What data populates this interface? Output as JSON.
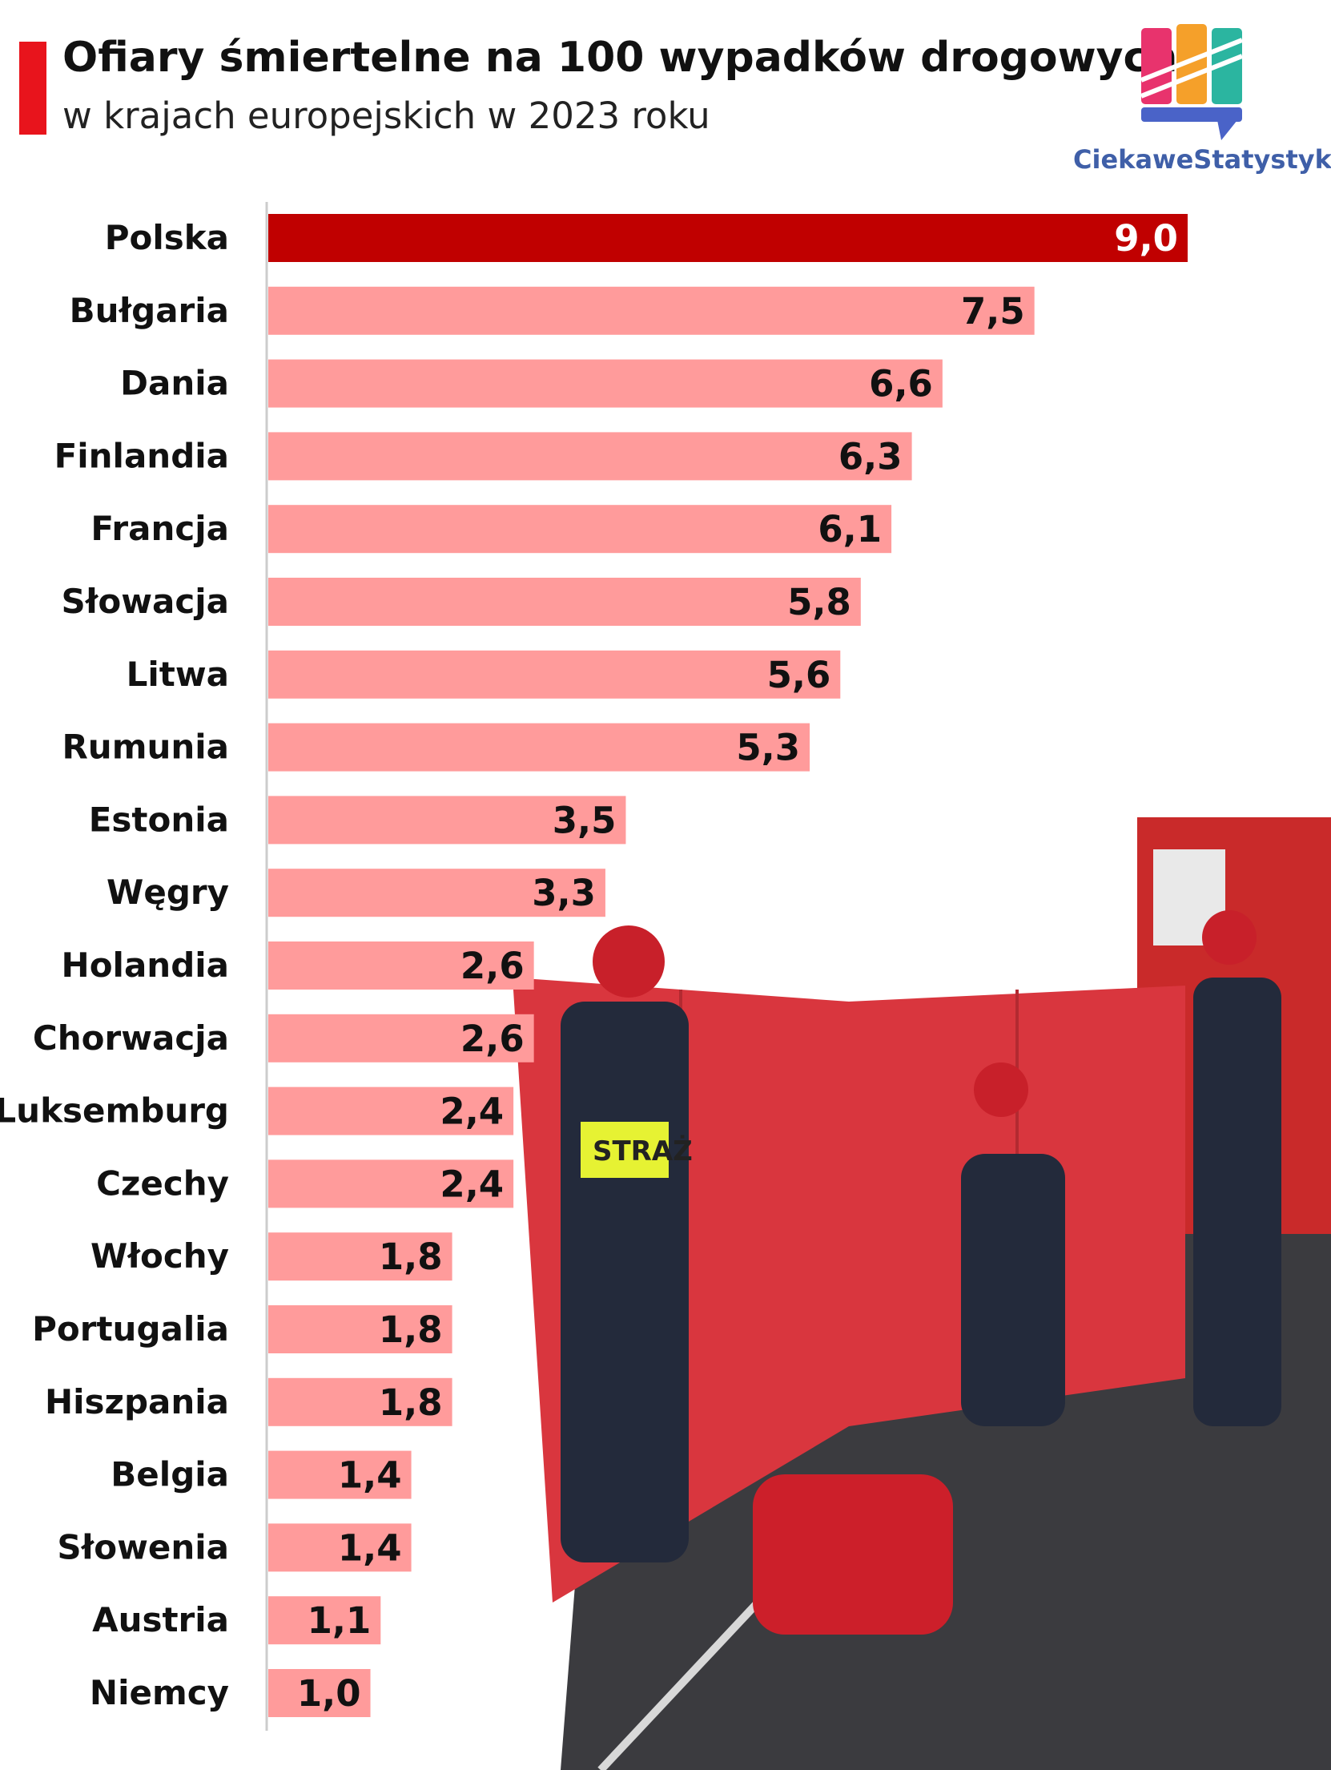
{
  "header": {
    "title": "Ofiary śmiertelne na 100 wypadków drogowych",
    "subtitle": "w krajach europejskich w 2023 roku"
  },
  "brand": {
    "name": "CiekaweStatystyki.pl",
    "logo_colors": [
      "#e8336d",
      "#f5a02a",
      "#2bb5a0",
      "#4a63c8"
    ]
  },
  "photo": {
    "icon": "firefighters-photo",
    "vest_text": "STRAŻ"
  },
  "colors": {
    "highlight_bar": "#c00000",
    "bar": "#ff9b9b",
    "highlight_value": "#ffffff",
    "value": "#111111",
    "axis": "#cccccc"
  },
  "chart_data": {
    "type": "bar",
    "orientation": "horizontal",
    "categories": [
      "Polska",
      "Bułgaria",
      "Dania",
      "Finlandia",
      "Francja",
      "Słowacja",
      "Litwa",
      "Rumunia",
      "Estonia",
      "Węgry",
      "Holandia",
      "Chorwacja",
      "Luksemburg",
      "Czechy",
      "Włochy",
      "Portugalia",
      "Hiszpania",
      "Belgia",
      "Słowenia",
      "Austria",
      "Niemcy"
    ],
    "values": [
      9.0,
      7.5,
      6.6,
      6.3,
      6.1,
      5.8,
      5.6,
      5.3,
      3.5,
      3.3,
      2.6,
      2.6,
      2.4,
      2.4,
      1.8,
      1.8,
      1.8,
      1.4,
      1.4,
      1.1,
      1.0
    ],
    "value_labels": [
      "9,0",
      "7,5",
      "6,6",
      "6,3",
      "6,1",
      "5,8",
      "5,6",
      "5,3",
      "3,5",
      "3,3",
      "2,6",
      "2,6",
      "2,4",
      "2,4",
      "1,8",
      "1,8",
      "1,8",
      "1,4",
      "1,4",
      "1,1",
      "1,0"
    ],
    "highlight": "Polska",
    "xlim": [
      0,
      9.0
    ],
    "grid": false,
    "legend": "none"
  }
}
